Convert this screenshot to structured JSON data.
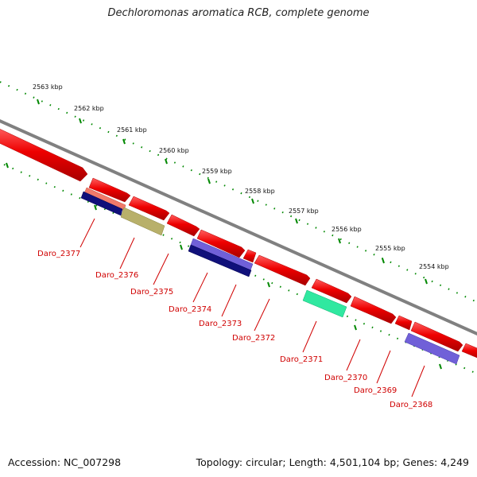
{
  "title": "Dechloromonas aromatica RCB, complete genome",
  "footer": {
    "accession": "Accession: NC_007298",
    "info": "Topology: circular; Length: 4,501,104 bp; Genes: 4,249"
  },
  "scale_ticks": [
    "2563 kbp",
    "2562 kbp",
    "2561 kbp",
    "2560 kbp",
    "2559 kbp",
    "2558 kbp",
    "2557 kbp",
    "2556 kbp",
    "2555 kbp",
    "2554 kbp"
  ],
  "gene_labels": [
    "Daro_2377",
    "Daro_2376",
    "Daro_2375",
    "Daro_2374",
    "Daro_2373",
    "Daro_2372",
    "Daro_2371",
    "Daro_2370",
    "Daro_2369",
    "Daro_2368"
  ],
  "colors": {
    "cds": "#ee0000",
    "backbone": "#808080",
    "scale_dots": "#008800",
    "label": "#d00000",
    "salmon": "#f07a6a",
    "navy": "#10107a",
    "khaki": "#b8b06a",
    "periwinkle": "#7060d8",
    "aqua": "#30e8a0"
  }
}
